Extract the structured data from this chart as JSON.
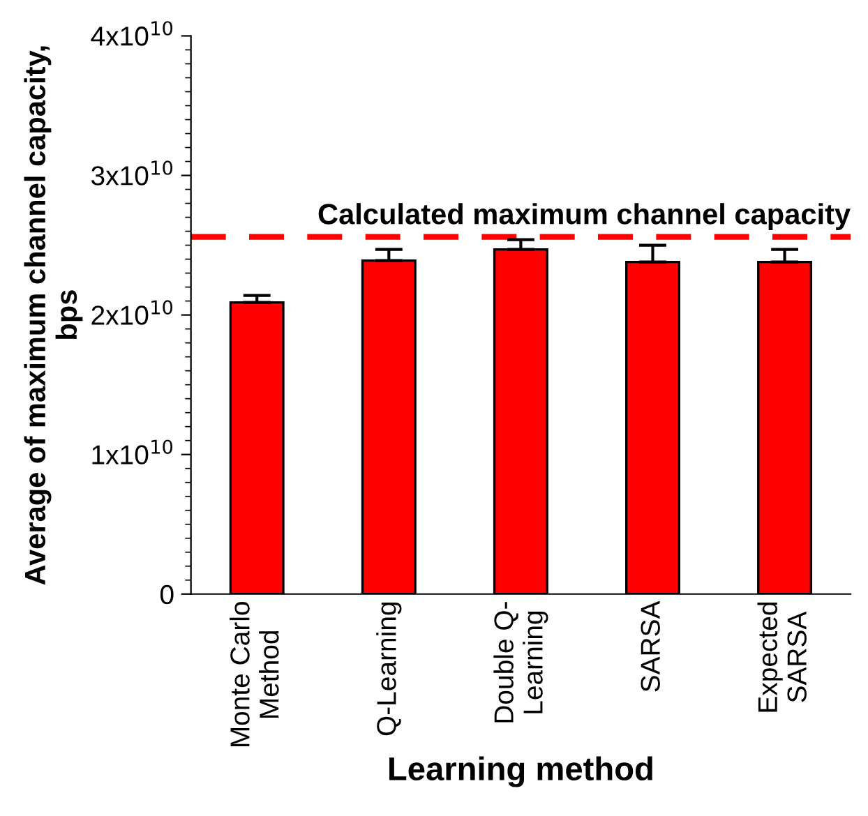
{
  "chart_data": {
    "type": "bar",
    "categories": [
      "Monte Carlo\nMethod",
      "Q-Learning",
      "Double Q-\nLearning",
      "SARSA",
      "Expected\nSARSA"
    ],
    "values": [
      20900000000,
      23900000000,
      24700000000,
      23800000000,
      23800000000
    ],
    "errors": [
      [
        20900000000,
        21400000000
      ],
      [
        23900000000,
        24700000000
      ],
      [
        24700000000,
        25400000000
      ],
      [
        23800000000,
        25000000000
      ],
      [
        23800000000,
        24700000000
      ]
    ],
    "color": "#ff0000",
    "xlabel": "Learning method",
    "ylabel": "Average of maximum channel capacity,\nbps",
    "ylim": [
      0,
      40000000000
    ],
    "yticks": [
      0,
      {
        "value": 10000000000,
        "label": "1x10$^{10}$"
      },
      {
        "value": 20000000000,
        "label": "2x10$^{10}$"
      },
      {
        "value": 30000000000,
        "label": "3x10$^{10}$"
      },
      {
        "value": 40000000000,
        "label": "4x10$^{10}$"
      }
    ],
    "ref_lines": [
      {
        "axis": "y",
        "value": 25600000000,
        "label": "Calculated maximum channel capacity",
        "color": "#ff0000",
        "line_style": "dashed"
      }
    ],
    "grid": false
  }
}
